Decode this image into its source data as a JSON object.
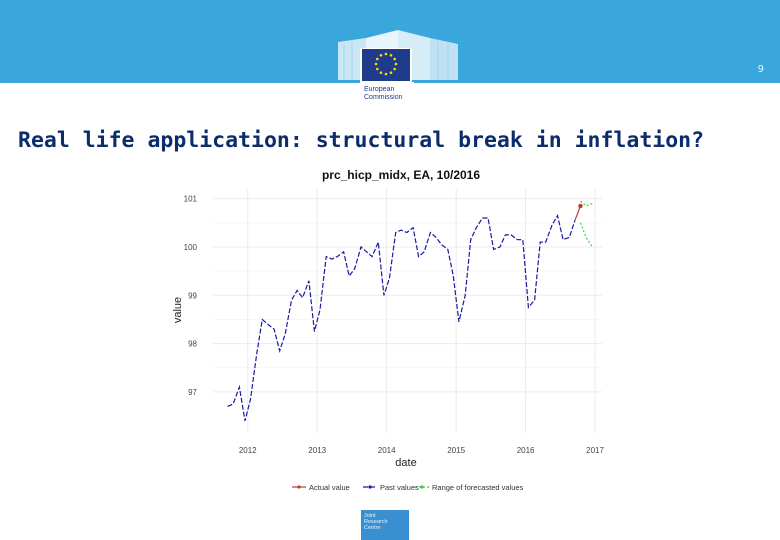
{
  "header": {
    "page_number": "9",
    "logo_line1": "European",
    "logo_line2": "Commission"
  },
  "slide": {
    "title": "Real life application: structural break in inflation?"
  },
  "footer": {
    "jrc_line1": "Joint",
    "jrc_line2": "Research",
    "jrc_line3": "Centre"
  },
  "colors": {
    "brand_blue": "#3aa7dc",
    "title_navy": "#0c2d6b",
    "past": "#1a1a9e",
    "actual": "#c0392b",
    "forecast": "#2ecc40"
  },
  "chart_data": {
    "type": "line",
    "title": "prc_hicp_midx, EA, 10/2016",
    "xlabel": "date",
    "ylabel": "value",
    "xlim": [
      2011.5,
      2017.1
    ],
    "ylim": [
      96.15,
      101.2
    ],
    "x_ticks": [
      2012,
      2013,
      2014,
      2015,
      2016,
      2017
    ],
    "x_tick_labels": [
      "2012",
      "2013",
      "2014",
      "2015",
      "2016",
      "2017"
    ],
    "y_ticks": [
      97,
      98,
      99,
      100,
      101
    ],
    "y_tick_labels": [
      "97",
      "98",
      "99",
      "100",
      "101"
    ],
    "grid": true,
    "legend_position": "bottom",
    "series": [
      {
        "name": "Past values",
        "style": "dashed",
        "x": [
          2011.71,
          2011.79,
          2011.88,
          2011.96,
          2012.04,
          2012.13,
          2012.21,
          2012.29,
          2012.38,
          2012.46,
          2012.54,
          2012.63,
          2012.71,
          2012.79,
          2012.88,
          2012.96,
          2013.04,
          2013.13,
          2013.21,
          2013.29,
          2013.38,
          2013.46,
          2013.54,
          2013.63,
          2013.71,
          2013.79,
          2013.88,
          2013.96,
          2014.04,
          2014.13,
          2014.21,
          2014.29,
          2014.38,
          2014.46,
          2014.54,
          2014.63,
          2014.71,
          2014.79,
          2014.88,
          2014.96,
          2015.04,
          2015.13,
          2015.21,
          2015.29,
          2015.38,
          2015.46,
          2015.54,
          2015.63,
          2015.71,
          2015.79,
          2015.88,
          2015.96,
          2016.04,
          2016.13,
          2016.21,
          2016.29,
          2016.38,
          2016.46,
          2016.54,
          2016.63,
          2016.71
        ],
        "values": [
          96.7,
          96.75,
          97.1,
          96.4,
          96.85,
          97.8,
          98.5,
          98.4,
          98.3,
          97.85,
          98.2,
          98.9,
          99.1,
          98.95,
          99.3,
          98.25,
          98.7,
          99.8,
          99.75,
          99.8,
          99.9,
          99.4,
          99.55,
          100.0,
          99.9,
          99.8,
          100.1,
          99.0,
          99.35,
          100.3,
          100.35,
          100.3,
          100.4,
          99.8,
          99.9,
          100.3,
          100.2,
          100.05,
          99.95,
          99.4,
          98.45,
          99.0,
          100.15,
          100.4,
          100.6,
          100.6,
          99.95,
          100.0,
          100.25,
          100.25,
          100.15,
          100.15,
          98.75,
          98.9,
          100.1,
          100.1,
          100.45,
          100.65,
          100.15,
          100.2,
          100.55
        ]
      },
      {
        "name": "Actual value",
        "x": [
          2016.79
        ],
        "values": [
          100.85
        ]
      },
      {
        "name": "Range of forecasted values",
        "style": "dotted",
        "lower_x": [
          2016.79,
          2016.87,
          2016.96
        ],
        "lower": [
          100.5,
          100.2,
          100.0
        ],
        "upper_x": [
          2016.79,
          2016.87,
          2016.96
        ],
        "upper": [
          100.95,
          100.85,
          100.9
        ]
      }
    ]
  }
}
